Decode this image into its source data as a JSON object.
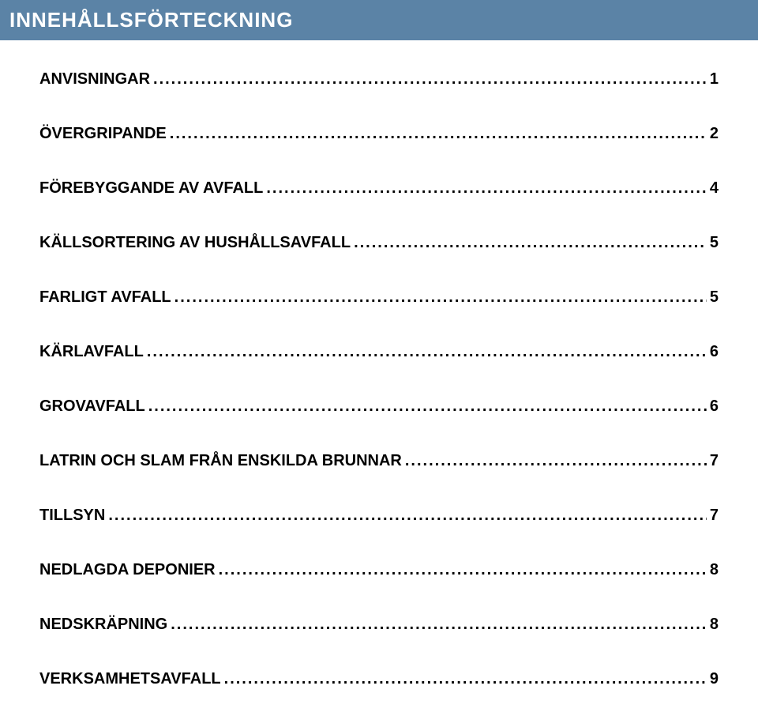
{
  "colors": {
    "header_bg": "#5b83a6",
    "header_text": "#ffffff",
    "body_bg": "#ffffff",
    "toc_text": "#000000"
  },
  "typography": {
    "header_fontsize": 26,
    "header_weight": "bold",
    "toc_fontsize": 20,
    "toc_weight": "bold",
    "toc_letter_spacing": 1
  },
  "header": {
    "title": "INNEHÅLLSFÖRTECKNING"
  },
  "toc": {
    "items": [
      {
        "label": "ANVISNINGAR",
        "page": "1"
      },
      {
        "label": "ÖVERGRIPANDE",
        "page": "2"
      },
      {
        "label": "FÖREBYGGANDE AV AVFALL",
        "page": "4"
      },
      {
        "label": "KÄLLSORTERING AV HUSHÅLLSAVFALL",
        "page": "5"
      },
      {
        "label": "FARLIGT AVFALL",
        "page": "5"
      },
      {
        "label": "KÄRLAVFALL",
        "page": "6"
      },
      {
        "label": "GROVAVFALL",
        "page": "6"
      },
      {
        "label": "LATRIN OCH SLAM FRÅN ENSKILDA BRUNNAR",
        "page": "7"
      },
      {
        "label": "TILLSYN",
        "page": "7"
      },
      {
        "label": "NEDLAGDA DEPONIER",
        "page": "8"
      },
      {
        "label": "NEDSKRÄPNING",
        "page": "8"
      },
      {
        "label": "VERKSAMHETSAVFALL",
        "page": "9"
      }
    ]
  }
}
